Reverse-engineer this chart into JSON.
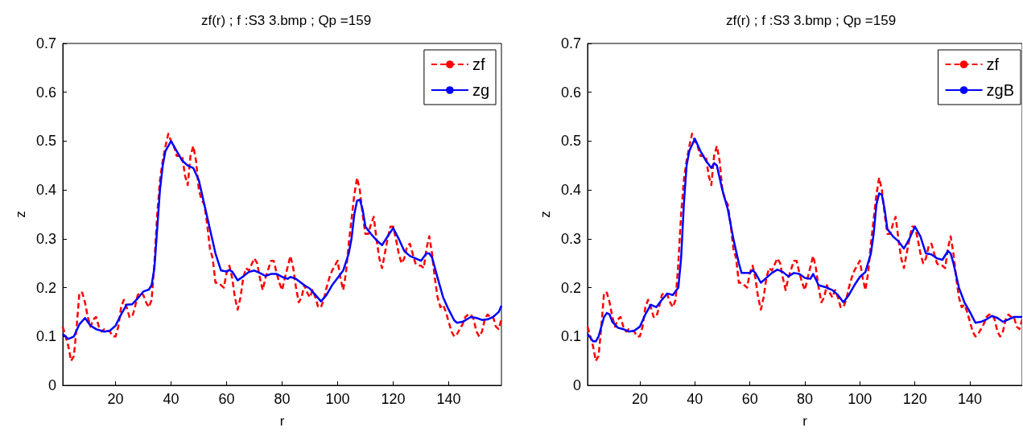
{
  "chart_data": [
    {
      "type": "line",
      "title": "zf(r) ; f :S3 3.bmp ; Qp =159",
      "xlabel": "r",
      "ylabel": "z",
      "xlim": [
        1,
        159
      ],
      "xticks": [
        20,
        40,
        60,
        80,
        100,
        120,
        140
      ],
      "ylim": [
        0,
        0.7
      ],
      "yticks": [
        0,
        0.1,
        0.2,
        0.3,
        0.4,
        0.5,
        0.6,
        0.7
      ],
      "grid": false,
      "legend": "top right",
      "marker": "none",
      "series": [
        {
          "name": "zf",
          "color": "#ff0000",
          "line_style": "dashed",
          "x": [
            1,
            3,
            4,
            5,
            6,
            7,
            8,
            9,
            10,
            11,
            12,
            13,
            14,
            15,
            16,
            18,
            19,
            20,
            21,
            22,
            23,
            24,
            25,
            26,
            27,
            28,
            29,
            30,
            31,
            32,
            33,
            34,
            35,
            36,
            37,
            38,
            39,
            40,
            41,
            42,
            43,
            44,
            45,
            46,
            47,
            48,
            49,
            50,
            51,
            52,
            53,
            54,
            55,
            56,
            57,
            58,
            59,
            60,
            61,
            62,
            63,
            64,
            65,
            66,
            67,
            68,
            70,
            71,
            72,
            73,
            74,
            76,
            77,
            78,
            79,
            80,
            81,
            83,
            84,
            85,
            86,
            87,
            88,
            89,
            90,
            91,
            92,
            93,
            94,
            95,
            96,
            97,
            98,
            100,
            101,
            102,
            103,
            104,
            105,
            106,
            107,
            108,
            109,
            110,
            111,
            112,
            113,
            114,
            115,
            116,
            117,
            118,
            119,
            120,
            121,
            122,
            123,
            124,
            125,
            126,
            127,
            128,
            129,
            130,
            131,
            132,
            133,
            134,
            135,
            136,
            137,
            138,
            139,
            140,
            141,
            142,
            143,
            144,
            145,
            146,
            147,
            148,
            149,
            150,
            151,
            152,
            153,
            154,
            155,
            156,
            157,
            158,
            159
          ],
          "values": [
            0.12,
            0.08,
            0.05,
            0.06,
            0.12,
            0.19,
            0.19,
            0.17,
            0.14,
            0.12,
            0.135,
            0.14,
            0.12,
            0.11,
            0.115,
            0.11,
            0.1,
            0.1,
            0.12,
            0.16,
            0.175,
            0.16,
            0.14,
            0.14,
            0.16,
            0.185,
            0.19,
            0.185,
            0.17,
            0.16,
            0.175,
            0.25,
            0.35,
            0.42,
            0.46,
            0.49,
            0.515,
            0.5,
            0.49,
            0.47,
            0.47,
            0.47,
            0.43,
            0.41,
            0.47,
            0.49,
            0.46,
            0.4,
            0.38,
            0.37,
            0.33,
            0.28,
            0.26,
            0.21,
            0.21,
            0.205,
            0.2,
            0.23,
            0.245,
            0.22,
            0.18,
            0.155,
            0.18,
            0.22,
            0.24,
            0.235,
            0.26,
            0.25,
            0.22,
            0.195,
            0.22,
            0.255,
            0.255,
            0.23,
            0.21,
            0.195,
            0.22,
            0.265,
            0.24,
            0.2,
            0.17,
            0.18,
            0.205,
            0.19,
            0.18,
            0.195,
            0.18,
            0.16,
            0.16,
            0.175,
            0.2,
            0.22,
            0.235,
            0.255,
            0.22,
            0.195,
            0.23,
            0.29,
            0.34,
            0.39,
            0.425,
            0.4,
            0.35,
            0.31,
            0.31,
            0.33,
            0.345,
            0.3,
            0.26,
            0.24,
            0.27,
            0.3,
            0.325,
            0.325,
            0.3,
            0.27,
            0.25,
            0.26,
            0.285,
            0.29,
            0.27,
            0.25,
            0.245,
            0.245,
            0.24,
            0.28,
            0.305,
            0.27,
            0.22,
            0.18,
            0.16,
            0.165,
            0.15,
            0.13,
            0.11,
            0.1,
            0.105,
            0.115,
            0.125,
            0.14,
            0.145,
            0.145,
            0.135,
            0.11,
            0.1,
            0.11,
            0.135,
            0.145,
            0.14,
            0.14,
            0.12,
            0.115,
            0.135
          ]
        },
        {
          "name": "zg",
          "color": "#0000ff",
          "line_style": "solid",
          "x": [
            1,
            3,
            5,
            7,
            9,
            11,
            13,
            16,
            18,
            20,
            22,
            24,
            26,
            28,
            30,
            32,
            33,
            34,
            35,
            36,
            37,
            38,
            40,
            42,
            44,
            46,
            48,
            50,
            52,
            54,
            56,
            58,
            60,
            61,
            62,
            64,
            66,
            68,
            70,
            72,
            74,
            76,
            78,
            80,
            82,
            83,
            85,
            88,
            90,
            92,
            94,
            96,
            98,
            100,
            102,
            104,
            105,
            106,
            107,
            108,
            109,
            110,
            112,
            114,
            116,
            118,
            120,
            122,
            124,
            126,
            128,
            130,
            132,
            133,
            134,
            136,
            138,
            140,
            142,
            143,
            145,
            148,
            150,
            152,
            154,
            156,
            158,
            159
          ],
          "values": [
            0.105,
            0.095,
            0.1,
            0.125,
            0.138,
            0.122,
            0.115,
            0.11,
            0.112,
            0.122,
            0.145,
            0.165,
            0.166,
            0.178,
            0.192,
            0.196,
            0.205,
            0.24,
            0.32,
            0.4,
            0.45,
            0.48,
            0.5,
            0.48,
            0.46,
            0.45,
            0.445,
            0.42,
            0.37,
            0.32,
            0.27,
            0.235,
            0.233,
            0.236,
            0.233,
            0.215,
            0.223,
            0.232,
            0.235,
            0.23,
            0.224,
            0.228,
            0.228,
            0.222,
            0.218,
            0.222,
            0.218,
            0.205,
            0.198,
            0.185,
            0.172,
            0.185,
            0.205,
            0.22,
            0.235,
            0.27,
            0.3,
            0.35,
            0.378,
            0.38,
            0.36,
            0.325,
            0.31,
            0.297,
            0.287,
            0.305,
            0.322,
            0.3,
            0.275,
            0.265,
            0.26,
            0.255,
            0.27,
            0.27,
            0.262,
            0.22,
            0.18,
            0.155,
            0.133,
            0.128,
            0.13,
            0.14,
            0.138,
            0.134,
            0.135,
            0.14,
            0.15,
            0.163
          ]
        }
      ]
    },
    {
      "type": "line",
      "title": "zf(r) ; f :S3 3.bmp ; Qp =159",
      "xlabel": "r",
      "ylabel": "z",
      "xlim": [
        1,
        159
      ],
      "xticks": [
        20,
        40,
        60,
        80,
        100,
        120,
        140
      ],
      "ylim": [
        0,
        0.7
      ],
      "yticks": [
        0,
        0.1,
        0.2,
        0.3,
        0.4,
        0.5,
        0.6,
        0.7
      ],
      "grid": false,
      "legend": "top right",
      "marker": "none",
      "series": [
        {
          "name": "zf",
          "color": "#ff0000",
          "line_style": "dashed",
          "x": [
            1,
            3,
            4,
            5,
            6,
            7,
            8,
            9,
            10,
            11,
            12,
            13,
            14,
            15,
            16,
            18,
            19,
            20,
            21,
            22,
            23,
            24,
            25,
            26,
            27,
            28,
            29,
            30,
            31,
            32,
            33,
            34,
            35,
            36,
            37,
            38,
            39,
            40,
            41,
            42,
            43,
            44,
            45,
            46,
            47,
            48,
            49,
            50,
            51,
            52,
            53,
            54,
            55,
            56,
            57,
            58,
            59,
            60,
            61,
            62,
            63,
            64,
            65,
            66,
            67,
            68,
            70,
            71,
            72,
            73,
            74,
            76,
            77,
            78,
            79,
            80,
            81,
            83,
            84,
            85,
            86,
            87,
            88,
            89,
            90,
            91,
            92,
            93,
            94,
            95,
            96,
            97,
            98,
            100,
            101,
            102,
            103,
            104,
            105,
            106,
            107,
            108,
            109,
            110,
            111,
            112,
            113,
            114,
            115,
            116,
            117,
            118,
            119,
            120,
            121,
            122,
            123,
            124,
            125,
            126,
            127,
            128,
            129,
            130,
            131,
            132,
            133,
            134,
            135,
            136,
            137,
            138,
            139,
            140,
            141,
            142,
            143,
            144,
            145,
            146,
            147,
            148,
            149,
            150,
            151,
            152,
            153,
            154,
            155,
            156,
            157,
            158,
            159
          ],
          "values": [
            0.12,
            0.08,
            0.05,
            0.06,
            0.12,
            0.19,
            0.19,
            0.17,
            0.14,
            0.12,
            0.135,
            0.14,
            0.12,
            0.11,
            0.115,
            0.11,
            0.1,
            0.1,
            0.12,
            0.16,
            0.175,
            0.16,
            0.14,
            0.14,
            0.16,
            0.185,
            0.19,
            0.185,
            0.17,
            0.16,
            0.175,
            0.25,
            0.35,
            0.42,
            0.46,
            0.49,
            0.515,
            0.5,
            0.49,
            0.47,
            0.47,
            0.47,
            0.43,
            0.41,
            0.47,
            0.49,
            0.46,
            0.4,
            0.38,
            0.37,
            0.33,
            0.28,
            0.26,
            0.21,
            0.21,
            0.205,
            0.2,
            0.23,
            0.245,
            0.22,
            0.18,
            0.155,
            0.18,
            0.22,
            0.24,
            0.235,
            0.26,
            0.25,
            0.22,
            0.195,
            0.22,
            0.255,
            0.255,
            0.23,
            0.21,
            0.195,
            0.22,
            0.265,
            0.24,
            0.2,
            0.17,
            0.18,
            0.205,
            0.19,
            0.18,
            0.195,
            0.18,
            0.16,
            0.16,
            0.175,
            0.2,
            0.22,
            0.235,
            0.255,
            0.22,
            0.195,
            0.23,
            0.29,
            0.34,
            0.39,
            0.425,
            0.4,
            0.35,
            0.31,
            0.31,
            0.33,
            0.345,
            0.3,
            0.26,
            0.24,
            0.27,
            0.3,
            0.325,
            0.325,
            0.3,
            0.27,
            0.25,
            0.26,
            0.285,
            0.29,
            0.27,
            0.25,
            0.245,
            0.245,
            0.24,
            0.28,
            0.305,
            0.27,
            0.22,
            0.18,
            0.16,
            0.165,
            0.15,
            0.13,
            0.11,
            0.1,
            0.105,
            0.115,
            0.125,
            0.14,
            0.145,
            0.145,
            0.135,
            0.11,
            0.1,
            0.11,
            0.135,
            0.145,
            0.14,
            0.14,
            0.12,
            0.115,
            0.135
          ]
        },
        {
          "name": "zgB",
          "color": "#0000ff",
          "line_style": "solid",
          "x": [
            1,
            3,
            4,
            5,
            7,
            8,
            9,
            10,
            12,
            14,
            16,
            18,
            20,
            22,
            24,
            26,
            28,
            30,
            32,
            34,
            35,
            36,
            37,
            38,
            40,
            42,
            44,
            46,
            47,
            48,
            50,
            52,
            54,
            56,
            57,
            60,
            61,
            62,
            64,
            66,
            68,
            70,
            72,
            74,
            76,
            78,
            80,
            82,
            83,
            85,
            88,
            90,
            92,
            94,
            96,
            98,
            100,
            102,
            104,
            105,
            106,
            107,
            108,
            109,
            110,
            112,
            114,
            116,
            118,
            120,
            122,
            124,
            126,
            128,
            130,
            132,
            133,
            134,
            136,
            138,
            140,
            142,
            144,
            146,
            148,
            150,
            152,
            154,
            156,
            159
          ],
          "values": [
            0.105,
            0.09,
            0.09,
            0.1,
            0.14,
            0.148,
            0.145,
            0.13,
            0.118,
            0.115,
            0.11,
            0.112,
            0.12,
            0.145,
            0.165,
            0.16,
            0.175,
            0.188,
            0.185,
            0.2,
            0.26,
            0.37,
            0.45,
            0.48,
            0.505,
            0.48,
            0.46,
            0.445,
            0.455,
            0.45,
            0.4,
            0.36,
            0.3,
            0.25,
            0.23,
            0.23,
            0.236,
            0.23,
            0.21,
            0.22,
            0.23,
            0.237,
            0.232,
            0.223,
            0.23,
            0.228,
            0.22,
            0.218,
            0.228,
            0.205,
            0.2,
            0.195,
            0.185,
            0.17,
            0.185,
            0.205,
            0.222,
            0.232,
            0.27,
            0.31,
            0.37,
            0.393,
            0.39,
            0.36,
            0.32,
            0.305,
            0.295,
            0.28,
            0.3,
            0.325,
            0.305,
            0.27,
            0.268,
            0.26,
            0.257,
            0.275,
            0.27,
            0.25,
            0.2,
            0.17,
            0.15,
            0.128,
            0.13,
            0.135,
            0.142,
            0.138,
            0.13,
            0.135,
            0.14,
            0.14
          ]
        }
      ]
    }
  ]
}
